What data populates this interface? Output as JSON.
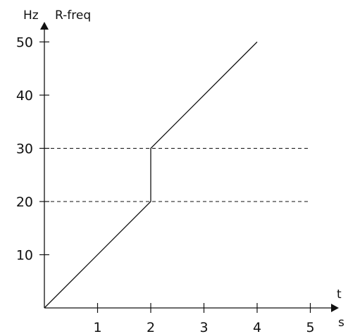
{
  "chart_data": {
    "type": "line",
    "y_unit": "Hz",
    "y_label": "R-freq",
    "x_label": "t",
    "x_unit": "s",
    "xlim": [
      0,
      5
    ],
    "ylim": [
      0,
      50
    ],
    "x_ticks": [
      1,
      2,
      3,
      4,
      5
    ],
    "y_ticks": [
      10,
      20,
      30,
      40,
      50
    ],
    "series": [
      {
        "points": [
          [
            0,
            0
          ],
          [
            2,
            20
          ],
          [
            2,
            30
          ],
          [
            4,
            50
          ]
        ]
      }
    ],
    "reference_lines_y": [
      20,
      30
    ],
    "colors": {
      "line": "#111111",
      "axis": "#111111"
    }
  }
}
